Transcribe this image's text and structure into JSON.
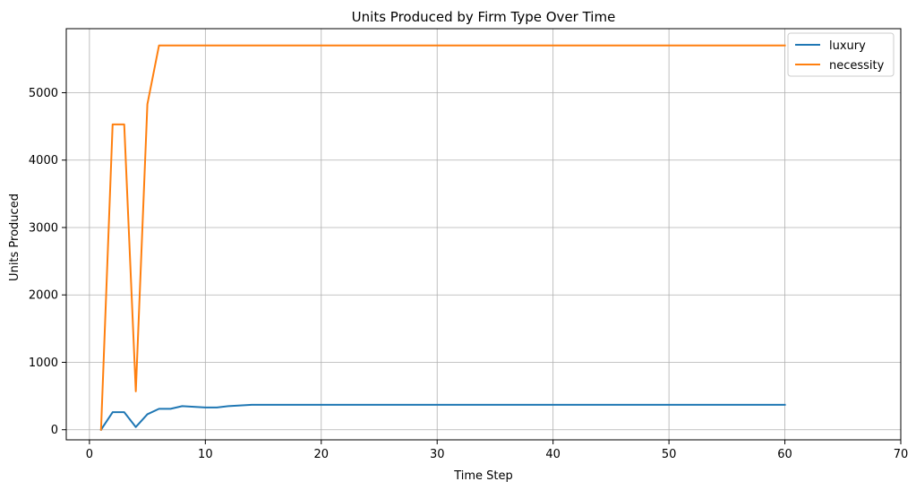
{
  "chart_data": {
    "type": "line",
    "title": "Units Produced by Firm Type Over Time",
    "xlabel": "Time Step",
    "ylabel": "Units Produced",
    "xlim": [
      -2,
      70
    ],
    "ylim": [
      -150,
      5950
    ],
    "xticks": [
      0,
      10,
      20,
      30,
      40,
      50,
      60,
      70
    ],
    "yticks": [
      0,
      1000,
      2000,
      3000,
      4000,
      5000
    ],
    "grid": true,
    "legend_position": "top-right",
    "series": [
      {
        "name": "luxury",
        "color": "#1f77b4",
        "x": [
          1,
          2,
          3,
          4,
          5,
          6,
          7,
          8,
          9,
          10,
          11,
          12,
          13,
          14,
          15,
          16,
          17,
          18,
          19,
          20,
          21,
          22,
          23,
          24,
          25,
          26,
          27,
          28,
          29,
          30,
          31,
          32,
          33,
          34,
          35,
          36,
          37,
          38,
          39,
          40,
          41,
          42,
          43,
          44,
          45,
          46,
          47,
          48,
          49,
          50,
          51,
          52,
          53,
          54,
          55,
          56,
          57,
          58,
          59,
          60
        ],
        "y": [
          0,
          260,
          260,
          40,
          230,
          310,
          310,
          350,
          340,
          330,
          330,
          350,
          360,
          370,
          370,
          370,
          370,
          370,
          370,
          370,
          370,
          370,
          370,
          370,
          370,
          370,
          370,
          370,
          370,
          370,
          370,
          370,
          370,
          370,
          370,
          370,
          370,
          370,
          370,
          370,
          370,
          370,
          370,
          370,
          370,
          370,
          370,
          370,
          370,
          370,
          370,
          370,
          370,
          370,
          370,
          370,
          370,
          370,
          370,
          370
        ]
      },
      {
        "name": "necessity",
        "color": "#ff7f0e",
        "x": [
          1,
          2,
          3,
          4,
          5,
          6,
          7,
          8,
          9,
          10,
          11,
          12,
          13,
          14,
          15,
          16,
          17,
          18,
          19,
          20,
          21,
          22,
          23,
          24,
          25,
          26,
          27,
          28,
          29,
          30,
          31,
          32,
          33,
          34,
          35,
          36,
          37,
          38,
          39,
          40,
          41,
          42,
          43,
          44,
          45,
          46,
          47,
          48,
          49,
          50,
          51,
          52,
          53,
          54,
          55,
          56,
          57,
          58,
          59,
          60
        ],
        "y": [
          0,
          4530,
          4530,
          570,
          4830,
          5700,
          5700,
          5700,
          5700,
          5700,
          5700,
          5700,
          5700,
          5700,
          5700,
          5700,
          5700,
          5700,
          5700,
          5700,
          5700,
          5700,
          5700,
          5700,
          5700,
          5700,
          5700,
          5700,
          5700,
          5700,
          5700,
          5700,
          5700,
          5700,
          5700,
          5700,
          5700,
          5700,
          5700,
          5700,
          5700,
          5700,
          5700,
          5700,
          5700,
          5700,
          5700,
          5700,
          5700,
          5700,
          5700,
          5700,
          5700,
          5700,
          5700,
          5700,
          5700,
          5700,
          5700,
          5700
        ]
      }
    ]
  }
}
